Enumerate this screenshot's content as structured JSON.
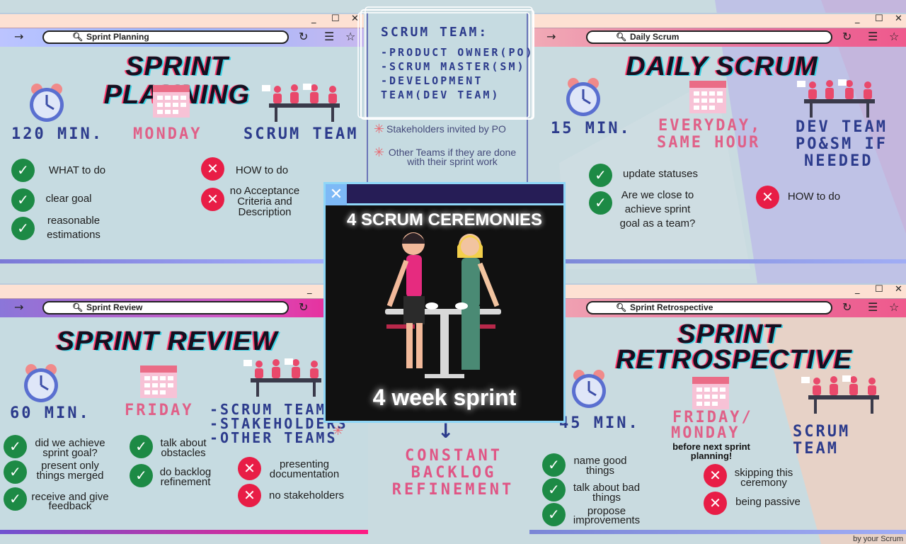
{
  "scrum_team": {
    "title": "SCRUM TEAM:",
    "lines": [
      "-PRODUCT OWNER(PO)",
      "-SCRUM MASTER(SM)",
      "-DEVELOPMENT",
      "TEAM(DEV TEAM)"
    ],
    "notes": [
      "Stakeholders invited by PO",
      "Other Teams if they are done",
      "with their sprint work"
    ]
  },
  "planning": {
    "url": "Sprint Planning",
    "title": "SPRINT PLANNING",
    "duration": "120 MIN.",
    "day": "MONDAY",
    "who": "SCRUM TEAM",
    "do": [
      "WHAT to do",
      "clear goal",
      "reasonable",
      "estimations"
    ],
    "dont": [
      "HOW to do",
      "no Acceptance",
      "Criteria and",
      "Description"
    ]
  },
  "daily": {
    "url": "Daily Scrum",
    "title": "DAILY SCRUM",
    "duration": "15 MIN.",
    "day": [
      "EVERYDAY,",
      "SAME HOUR"
    ],
    "who": [
      "DEV TEAM",
      "PO&SM IF",
      "NEEDED"
    ],
    "do": [
      "update statuses",
      "Are we close to",
      "achieve sprint",
      "goal as a team?"
    ],
    "dont": [
      "HOW to do"
    ]
  },
  "review": {
    "url": "Sprint Review",
    "title": "SPRINT REVIEW",
    "duration": "60 MIN.",
    "day": "FRIDAY",
    "who": [
      "-SCRUM TEAM",
      "-STAKEHOLDERS",
      "-OTHER TEAMS"
    ],
    "do1": [
      "did we achieve",
      "sprint goal?",
      "present only",
      "things merged",
      "receive and give",
      "feedback"
    ],
    "do2": [
      "talk about",
      "obstacles",
      "do backlog",
      "refinement"
    ],
    "dont": [
      "presenting",
      "documentation",
      "no stakeholders"
    ]
  },
  "retro": {
    "url": "Sprint Retrospective",
    "title": [
      "SPRINT",
      "RETROSPECTIVE"
    ],
    "duration": "45 MIN.",
    "day": [
      "FRIDAY/",
      "MONDAY"
    ],
    "day_note": [
      "before next sprint",
      "planning!"
    ],
    "who": "SCRUM TEAM",
    "do": [
      "name good",
      "things",
      "talk about bad",
      "things",
      "propose",
      "improvements"
    ],
    "dont": [
      "skipping this",
      "ceremony",
      "being passive"
    ]
  },
  "center": {
    "title": "4 SCRUM CEREMONIES",
    "subtitle": "4 week sprint",
    "below": [
      "CONSTANT",
      "BACKLOG",
      "REFINEMENT"
    ]
  },
  "footer": "by your Scrum",
  "colors": {
    "check": "#1d8a45",
    "cross": "#e81d46",
    "navy": "#2c3b8c",
    "pink": "#e06088"
  }
}
